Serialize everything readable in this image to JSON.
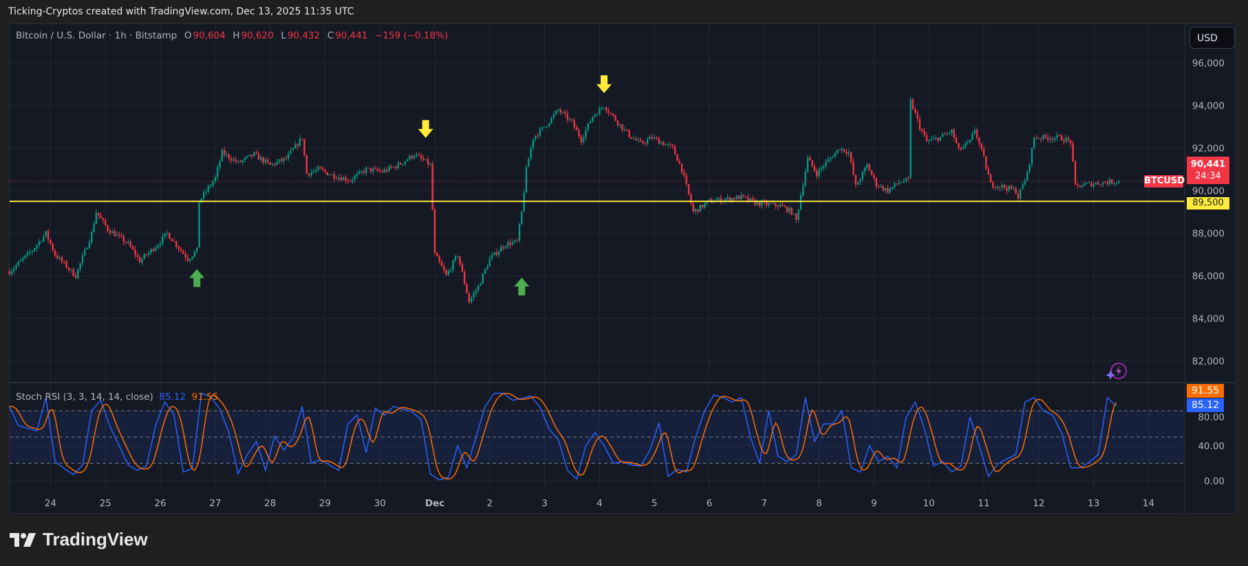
{
  "header": {
    "text": "Ticking-Cryptos created with TradingView.com, Dec 13, 2025 11:35 UTC"
  },
  "legend": {
    "symbol": "Bitcoin / U.S. Dollar · 1h · Bitstamp",
    "o_label": "O",
    "o": "90,604",
    "h_label": "H",
    "h": "90,620",
    "l_label": "L",
    "l": "90,432",
    "c_label": "C",
    "c": "90,441",
    "change": "−159 (−0.18%)"
  },
  "currency_button": "USD",
  "price_tags": {
    "symbol": "BTCUSD",
    "last": "90,441",
    "countdown": "24:34",
    "level": "89,500"
  },
  "indicator": {
    "name": "Stoch RSI (3, 3, 14, 14, close)",
    "k_value": "85.12",
    "d_value": "91.55"
  },
  "brand": "TradingView",
  "colors": {
    "up": "#089981",
    "down": "#f23645",
    "k_line": "#2962ff",
    "d_line": "#ff6d00",
    "level_line": "#ffeb3b",
    "arrow_up": "#4caf50",
    "arrow_down": "#ffeb3b",
    "background": "#151924"
  },
  "chart_data": {
    "type": "candlestick",
    "interval": "1h",
    "price_axis": {
      "ticks": [
        "96,000",
        "94,000",
        "92,000",
        "90,000",
        "88,000",
        "86,000",
        "84,000",
        "82,000"
      ],
      "tick_values": [
        96000,
        94000,
        92000,
        90000,
        88000,
        86000,
        84000,
        82000
      ]
    },
    "time_axis": {
      "ticks": [
        "24",
        "25",
        "26",
        "27",
        "28",
        "29",
        "30",
        "Dec",
        "2",
        "3",
        "4",
        "5",
        "6",
        "7",
        "8",
        "9",
        "10",
        "11",
        "12",
        "13",
        "14"
      ],
      "tick_dates": [
        "2025-11-24",
        "2025-11-25",
        "2025-11-26",
        "2025-11-27",
        "2025-11-28",
        "2025-11-29",
        "2025-11-30",
        "2025-12-01",
        "2025-12-02",
        "2025-12-03",
        "2025-12-04",
        "2025-12-05",
        "2025-12-06",
        "2025-12-07",
        "2025-12-08",
        "2025-12-09",
        "2025-12-10",
        "2025-12-11",
        "2025-12-12",
        "2025-12-13",
        "2025-12-14"
      ]
    },
    "grid": true,
    "last_price": 90441,
    "horizontal_level": 89500,
    "price_path": [
      [
        "2025-11-23 06:00",
        86200
      ],
      [
        "2025-11-23 16:00",
        87200
      ],
      [
        "2025-11-23 22:00",
        88000
      ],
      [
        "2025-11-24 02:00",
        87000
      ],
      [
        "2025-11-24 11:00",
        86000
      ],
      [
        "2025-11-24 18:00",
        88000
      ],
      [
        "2025-11-24 20:00",
        89000
      ],
      [
        "2025-11-25 01:00",
        88200
      ],
      [
        "2025-11-25 10:00",
        87500
      ],
      [
        "2025-11-25 15:00",
        86700
      ],
      [
        "2025-11-25 23:00",
        87500
      ],
      [
        "2025-11-26 03:00",
        88000
      ],
      [
        "2025-11-26 12:00",
        86800
      ],
      [
        "2025-11-26 16:00",
        87200
      ],
      [
        "2025-11-26 17:00",
        89500
      ],
      [
        "2025-11-27 00:00",
        90600
      ],
      [
        "2025-11-27 03:00",
        91800
      ],
      [
        "2025-11-27 10:00",
        91300
      ],
      [
        "2025-11-27 17:00",
        91700
      ],
      [
        "2025-11-28 00:00",
        91200
      ],
      [
        "2025-11-28 07:00",
        91500
      ],
      [
        "2025-11-28 14:00",
        92500
      ],
      [
        "2025-11-28 16:00",
        90800
      ],
      [
        "2025-11-28 21:00",
        91000
      ],
      [
        "2025-11-29 04:00",
        90700
      ],
      [
        "2025-11-29 11:00",
        90500
      ],
      [
        "2025-11-29 18:00",
        91000
      ],
      [
        "2025-11-30 01:00",
        90900
      ],
      [
        "2025-11-30 08:00",
        91200
      ],
      [
        "2025-11-30 15:00",
        91700
      ],
      [
        "2025-11-30 22:00",
        91200
      ],
      [
        "2025-12-01 00:00",
        87000
      ],
      [
        "2025-12-01 05:00",
        86000
      ],
      [
        "2025-12-01 10:00",
        87000
      ],
      [
        "2025-12-01 15:00",
        84800
      ],
      [
        "2025-12-01 19:00",
        85500
      ],
      [
        "2025-12-02 00:00",
        86800
      ],
      [
        "2025-12-02 07:00",
        87500
      ],
      [
        "2025-12-02 12:00",
        87600
      ],
      [
        "2025-12-02 14:00",
        89000
      ],
      [
        "2025-12-02 16:00",
        91000
      ],
      [
        "2025-12-02 19:00",
        92500
      ],
      [
        "2025-12-03 00:00",
        93000
      ],
      [
        "2025-12-03 06:00",
        93800
      ],
      [
        "2025-12-03 12:00",
        93200
      ],
      [
        "2025-12-03 16:00",
        92400
      ],
      [
        "2025-12-03 21:00",
        93500
      ],
      [
        "2025-12-04 02:00",
        94000
      ],
      [
        "2025-12-04 08:00",
        93200
      ],
      [
        "2025-12-04 13:00",
        92600
      ],
      [
        "2025-12-04 18:00",
        92200
      ],
      [
        "2025-12-04 23:00",
        92500
      ],
      [
        "2025-12-05 08:00",
        92000
      ],
      [
        "2025-12-05 12:00",
        91000
      ],
      [
        "2025-12-05 15:00",
        89800
      ],
      [
        "2025-12-05 17:00",
        89000
      ],
      [
        "2025-12-06 00:00",
        89500
      ],
      [
        "2025-12-06 14:00",
        89700
      ],
      [
        "2025-12-06 21:00",
        89400
      ],
      [
        "2025-12-07 07:00",
        89300
      ],
      [
        "2025-12-07 12:00",
        89000
      ],
      [
        "2025-12-07 14:00",
        88600
      ],
      [
        "2025-12-07 16:00",
        89800
      ],
      [
        "2025-12-07 19:00",
        91500
      ],
      [
        "2025-12-07 23:00",
        90800
      ],
      [
        "2025-12-08 02:00",
        91200
      ],
      [
        "2025-12-08 09:00",
        92000
      ],
      [
        "2025-12-08 13:00",
        91800
      ],
      [
        "2025-12-08 16:00",
        90200
      ],
      [
        "2025-12-08 21:00",
        91200
      ],
      [
        "2025-12-09 01:00",
        90300
      ],
      [
        "2025-12-09 06:00",
        90000
      ],
      [
        "2025-12-09 11:00",
        90400
      ],
      [
        "2025-12-09 15:00",
        90500
      ],
      [
        "2025-12-09 16:00",
        94200
      ],
      [
        "2025-12-09 20:00",
        93000
      ],
      [
        "2025-12-09 23:00",
        92300
      ],
      [
        "2025-12-10 05:00",
        92500
      ],
      [
        "2025-12-10 10:00",
        92800
      ],
      [
        "2025-12-10 13:00",
        91900
      ],
      [
        "2025-12-10 18:00",
        92300
      ],
      [
        "2025-12-10 20:00",
        92900
      ],
      [
        "2025-12-11 00:00",
        91500
      ],
      [
        "2025-12-11 03:00",
        90300
      ],
      [
        "2025-12-11 08:00",
        90200
      ],
      [
        "2025-12-11 14:00",
        90000
      ],
      [
        "2025-12-11 15:00",
        89700
      ],
      [
        "2025-12-11 19:00",
        90800
      ],
      [
        "2025-12-11 22:00",
        92500
      ],
      [
        "2025-12-12 02:00",
        92500
      ],
      [
        "2025-12-12 09:00",
        92500
      ],
      [
        "2025-12-12 14:00",
        92300
      ],
      [
        "2025-12-12 16:00",
        90200
      ],
      [
        "2025-12-12 21:00",
        90300
      ],
      [
        "2025-12-13 06:00",
        90400
      ],
      [
        "2025-12-13 11:00",
        90441
      ]
    ],
    "annotations": [
      {
        "type": "arrow-up",
        "date": "2025-11-26 16:00",
        "price": 85900
      },
      {
        "type": "arrow-down",
        "date": "2025-11-30 20:00",
        "price": 92900
      },
      {
        "type": "arrow-up",
        "date": "2025-12-02 14:00",
        "price": 85500
      },
      {
        "type": "arrow-down",
        "date": "2025-12-04 02:00",
        "price": 95000
      }
    ],
    "stoch_rsi": {
      "ylim": [
        0,
        100
      ],
      "ticks": [
        "0.00",
        "40.00",
        "80.00"
      ],
      "tick_values": [
        0,
        40,
        80
      ],
      "bands": [
        20,
        50,
        80
      ],
      "start": "2025-11-23 06:00",
      "interval": "4h",
      "k": [
        85,
        63,
        60,
        57,
        95,
        22,
        14,
        7,
        18,
        80,
        92,
        62,
        40,
        18,
        12,
        17,
        64,
        90,
        75,
        10,
        14,
        100,
        96,
        82,
        55,
        8,
        30,
        45,
        12,
        51,
        35,
        49,
        85,
        20,
        24,
        18,
        12,
        65,
        75,
        32,
        83,
        75,
        85,
        82,
        79,
        70,
        8,
        1,
        4,
        40,
        15,
        50,
        85,
        100,
        100,
        92,
        94,
        97,
        84,
        59,
        47,
        12,
        2,
        40,
        55,
        40,
        20,
        22,
        18,
        17,
        35,
        66,
        5,
        13,
        10,
        50,
        80,
        98,
        95,
        90,
        95,
        50,
        20,
        80,
        28,
        22,
        30,
        95,
        45,
        65,
        65,
        80,
        15,
        10,
        40,
        22,
        28,
        15,
        72,
        90,
        60,
        17,
        22,
        10,
        17,
        73,
        40,
        5,
        19,
        25,
        30,
        90,
        95,
        80,
        75,
        55,
        15,
        15,
        21,
        30,
        95,
        85.12
      ]
    }
  }
}
